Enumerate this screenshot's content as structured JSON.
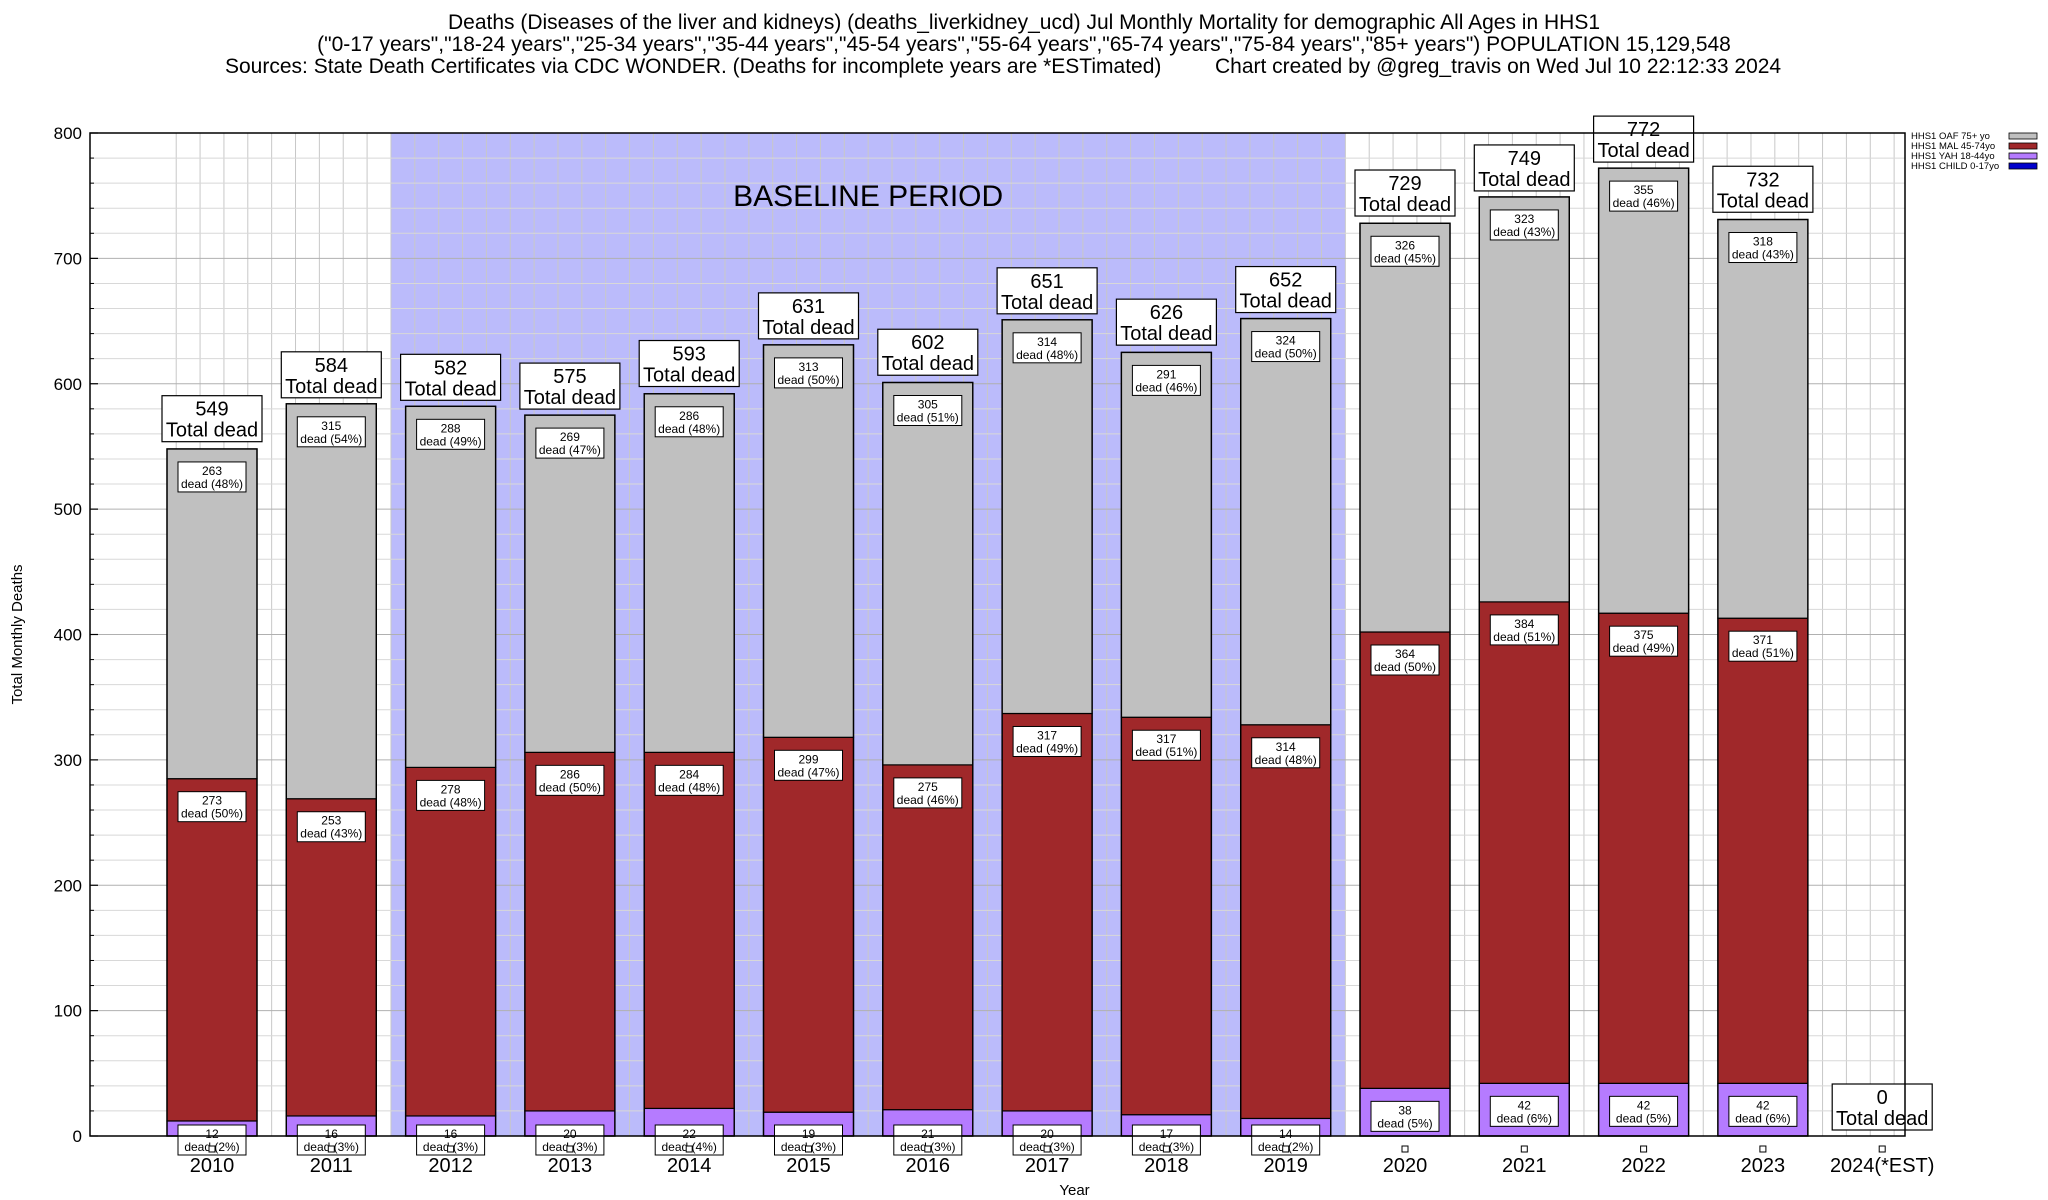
{
  "chart_data": {
    "type": "bar",
    "stacked": true,
    "title": "Deaths (Diseases of the liver and kidneys) (deaths_liverkidney_ucd) Jul Monthly Mortality for demographic All Ages in HHS1",
    "subtitle": "(\"0-17 years\",\"18-24 years\",\"25-34 years\",\"35-44 years\",\"45-54 years\",\"55-64 years\",\"65-74 years\",\"75-84 years\",\"85+ years\") POPULATION 15,129,548",
    "source": "Sources: State Death Certificates via CDC WONDER. (Deaths for incomplete years are *ESTimated)",
    "credit": "Chart created by @greg_travis on Wed Jul 10 22:12:33 2024",
    "xlabel": "Year",
    "ylabel": "Total Monthly Deaths",
    "ylim": [
      0,
      800
    ],
    "yticks": [
      0,
      100,
      200,
      300,
      400,
      500,
      600,
      700,
      800
    ],
    "grid": true,
    "legend_position": "top-right",
    "baseline_label": "BASELINE PERIOD",
    "baseline_range": [
      "2012",
      "2019"
    ],
    "total_suffix": "Total dead",
    "segment_prefix": "dead",
    "categories": [
      "2010",
      "2011",
      "2012",
      "2013",
      "2014",
      "2015",
      "2016",
      "2017",
      "2018",
      "2019",
      "2020",
      "2021",
      "2022",
      "2023",
      "2024(*EST)"
    ],
    "totals": [
      549,
      584,
      582,
      575,
      593,
      631,
      602,
      651,
      626,
      652,
      729,
      749,
      772,
      732,
      0
    ],
    "series": [
      {
        "name": "HHS1 CHILD 0-17yo",
        "color": "#0000cc",
        "values": [
          0,
          0,
          0,
          0,
          0,
          0,
          0,
          0,
          0,
          0,
          0,
          0,
          0,
          0,
          0
        ]
      },
      {
        "name": "HHS1 YAH 18-44yo",
        "color": "#b57bff",
        "values": [
          12,
          16,
          16,
          20,
          22,
          19,
          21,
          20,
          17,
          14,
          38,
          42,
          42,
          42,
          0
        ],
        "pct": [
          "2%",
          "3%",
          "3%",
          "3%",
          "4%",
          "3%",
          "3%",
          "3%",
          "3%",
          "2%",
          "5%",
          "6%",
          "5%",
          "6%",
          ""
        ]
      },
      {
        "name": "HHS1 MAL 45-74yo",
        "color": "#a0282a",
        "values": [
          273,
          253,
          278,
          286,
          284,
          299,
          275,
          317,
          317,
          314,
          364,
          384,
          375,
          371,
          0
        ],
        "pct": [
          "50%",
          "43%",
          "48%",
          "50%",
          "48%",
          "47%",
          "46%",
          "49%",
          "51%",
          "48%",
          "50%",
          "51%",
          "49%",
          "51%",
          ""
        ]
      },
      {
        "name": "HHS1 OAF 75+ yo",
        "color": "#c0c0c0",
        "values": [
          263,
          315,
          288,
          269,
          286,
          313,
          305,
          314,
          291,
          324,
          326,
          323,
          355,
          318,
          0
        ],
        "pct": [
          "48%",
          "54%",
          "49%",
          "47%",
          "48%",
          "50%",
          "51%",
          "48%",
          "46%",
          "50%",
          "45%",
          "43%",
          "46%",
          "43%",
          ""
        ]
      }
    ],
    "legend_order": [
      "HHS1 OAF 75+ yo",
      "HHS1 MAL 45-74yo",
      "HHS1 YAH 18-44yo",
      "HHS1 CHILD 0-17yo"
    ]
  }
}
